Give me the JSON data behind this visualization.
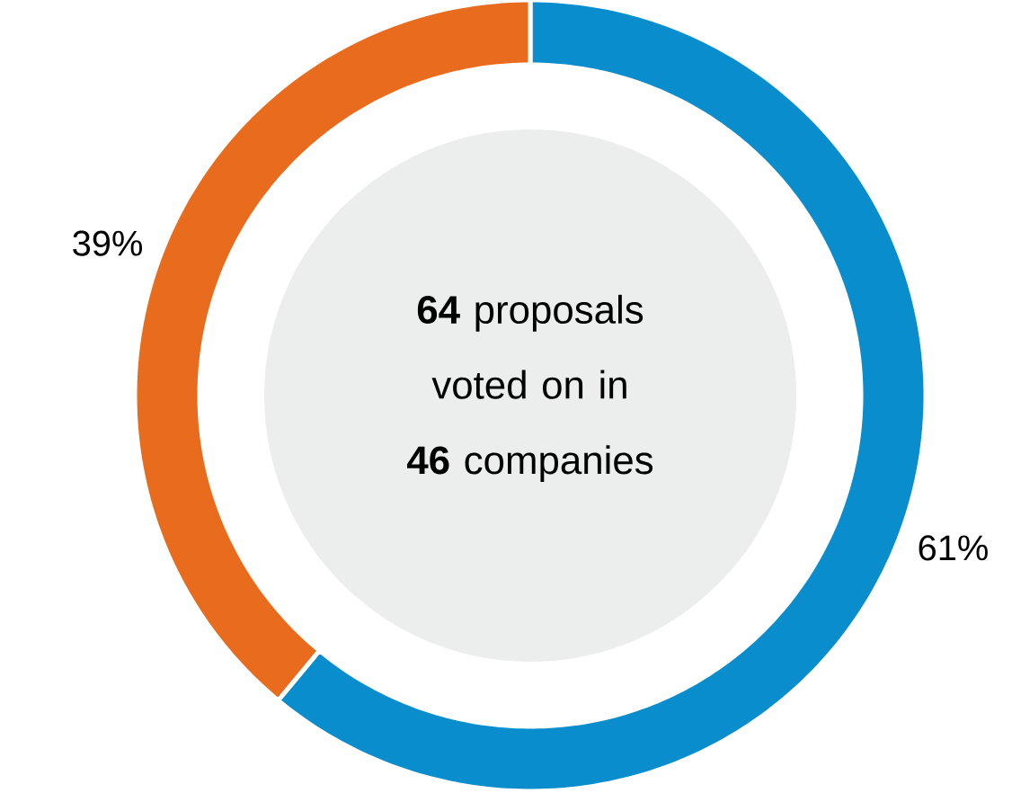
{
  "chart_data": {
    "type": "donut",
    "categories": [
      null,
      null
    ],
    "values": [
      61,
      39
    ],
    "colors": [
      "#0a8dcc",
      "#e96c1e"
    ],
    "value_labels": [
      "61%",
      "39%"
    ],
    "annotations": [
      "**64** proposals voted on in **46** companies"
    ]
  }
}
